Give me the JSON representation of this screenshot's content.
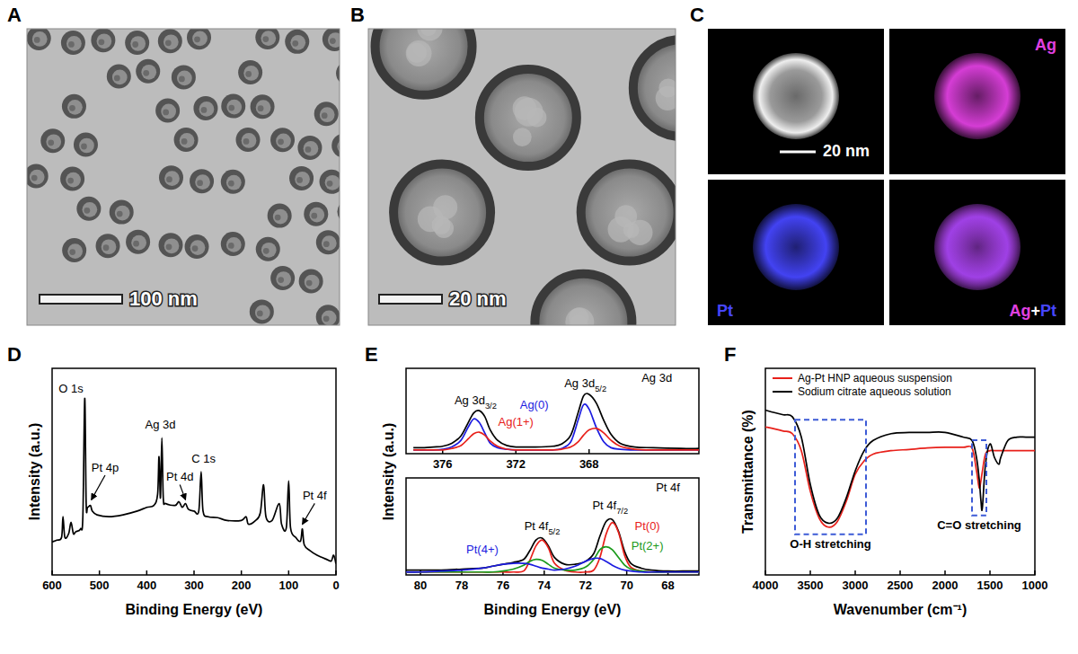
{
  "chart_data": [
    {
      "type": "micrograph",
      "title": "A",
      "annotations": [
        "100 nm"
      ]
    },
    {
      "type": "micrograph",
      "title": "B",
      "annotations": [
        "20 nm"
      ]
    },
    {
      "type": "eds_map",
      "title": "C",
      "annotations": [
        "20 nm",
        "Ag+Pt"
      ],
      "series": [
        {
          "name": "Ag",
          "color": "#e040e0"
        },
        {
          "name": "Pt",
          "color": "#4646ff"
        }
      ]
    },
    {
      "type": "line",
      "title": "D",
      "x_label": "Binding Energy (eV)",
      "y_label": "Intensity (a.u.)",
      "xlim": [
        600,
        0
      ],
      "ylim": [
        0,
        110
      ],
      "xticks": [
        600,
        500,
        400,
        300,
        200,
        100,
        0
      ],
      "tick_labels": "x",
      "x": [
        600,
        590,
        580,
        577,
        573,
        565,
        560,
        555,
        550,
        540,
        535,
        531,
        528,
        525,
        519,
        515,
        505,
        480,
        450,
        420,
        400,
        385,
        377,
        374,
        371,
        368,
        365,
        360,
        340,
        332,
        325,
        318,
        312,
        300,
        290,
        285,
        281,
        270,
        250,
        230,
        200,
        190,
        185,
        170,
        160,
        153,
        148,
        135,
        120,
        115,
        105,
        100,
        96,
        85,
        75,
        71,
        67,
        55,
        40,
        20,
        10,
        5,
        0
      ],
      "series": [
        {
          "color": "#000000",
          "values": [
            17.6,
            18.5,
            20,
            31,
            20,
            22,
            28,
            22,
            23,
            24.5,
            31,
            94,
            38,
            36,
            37,
            34,
            32,
            31,
            32,
            34,
            36,
            37,
            43,
            63,
            41,
            73,
            41,
            38,
            37,
            39,
            36,
            38,
            35,
            34,
            34,
            55,
            34,
            31,
            30.5,
            29,
            29,
            31,
            27,
            29,
            33,
            48,
            31,
            29,
            38,
            27,
            25,
            50,
            25,
            20,
            18,
            24.5,
            16,
            13,
            10.5,
            8.3,
            7.4,
            10.5,
            6
          ]
        }
      ],
      "annotations": [
        {
          "text": "O 1s",
          "x": 560,
          "y": 97
        },
        {
          "text": "Pt 4p",
          "x": 488,
          "y": 55,
          "target": [
            517,
            40
          ]
        },
        {
          "text": "Ag 3d",
          "x": 371,
          "y": 78
        },
        {
          "text": "Pt 4d",
          "x": 330,
          "y": 50,
          "target": [
            318,
            40
          ]
        },
        {
          "text": "C 1s",
          "x": 280,
          "y": 60
        },
        {
          "text": "Pt 4f",
          "x": 45,
          "y": 40,
          "target": [
            71,
            27
          ]
        }
      ]
    },
    {
      "type": "line",
      "title": "E",
      "y_label": "Intensity (a.u.)",
      "xlim": [
        378,
        362
      ],
      "ylim": [
        0,
        115
      ],
      "xticks": [
        376,
        372,
        368
      ],
      "tick_labels": "x",
      "x": [
        377.6,
        377,
        376.5,
        376,
        375.5,
        375,
        374.6,
        374.3,
        374.0,
        373.7,
        373.4,
        373,
        372.5,
        372,
        371,
        370,
        369.5,
        369,
        368.6,
        368.3,
        368.0,
        367.6,
        367.2,
        366.8,
        366.3,
        365.5,
        364.5,
        363,
        362
      ],
      "series": [
        {
          "color": "#000000",
          "values": [
            8,
            8,
            9,
            10,
            14,
            24,
            42,
            55,
            58,
            50,
            32,
            18,
            11,
            9,
            9,
            10,
            13,
            25,
            55,
            78,
            80,
            68,
            45,
            26,
            14,
            9,
            8,
            7,
            7
          ]
        },
        {
          "name": "Ag(0)",
          "color": "#1c1ce0",
          "values": [
            5,
            5,
            5,
            6,
            9,
            18,
            36,
            47,
            42,
            28,
            14,
            8,
            6,
            5,
            5,
            5,
            7,
            16,
            45,
            66,
            60,
            35,
            16,
            8,
            6,
            5,
            5,
            5,
            5
          ],
          "label_at": [
            371.0,
            60
          ]
        },
        {
          "name": "Ag(1+)",
          "color": "#e8201a",
          "values": [
            5,
            5,
            5,
            5,
            7,
            11,
            20,
            27,
            29,
            25,
            17,
            10,
            6,
            5,
            5,
            5,
            6,
            9,
            16,
            25,
            32,
            34,
            28,
            18,
            10,
            6,
            5,
            5,
            5
          ],
          "label_at": [
            372.0,
            37
          ]
        }
      ],
      "annotations": [
        {
          "text": "Ag 3d",
          "x": 364.3,
          "y": 97
        },
        {
          "text": "Ag 3d3/2",
          "x": 374.2,
          "y": 67
        },
        {
          "text": "Ag 3d5/2",
          "x": 368.2,
          "y": 90
        }
      ]
    },
    {
      "type": "line",
      "x_label": "Binding Energy (eV)",
      "xlim": [
        80.7,
        66.5
      ],
      "ylim": [
        0,
        100
      ],
      "xticks": [
        80,
        78,
        76,
        74,
        72,
        70,
        68
      ],
      "tick_labels": "x",
      "x": [
        80.7,
        80,
        79,
        78,
        77,
        76.5,
        76,
        75.5,
        75,
        74.7,
        74.4,
        74.1,
        73.8,
        73.5,
        73,
        72.5,
        72,
        71.6,
        71.3,
        71.0,
        70.7,
        70.4,
        70.1,
        69.8,
        69.3,
        68.8,
        68,
        67,
        66.5
      ],
      "series": [
        {
          "color": "#000000",
          "values": [
            5,
            5,
            5,
            6,
            7,
            9,
            11,
            13,
            16,
            25,
            36,
            38,
            30,
            18,
            11,
            11,
            14,
            22,
            40,
            55,
            57,
            45,
            24,
            12,
            7,
            5,
            4,
            4,
            4
          ]
        },
        {
          "name": "Pt(0)",
          "color": "#e8201a",
          "values": [
            3,
            3,
            3,
            3,
            3,
            3,
            3,
            3,
            4,
            15,
            30,
            36,
            28,
            12,
            5,
            3,
            3,
            5,
            18,
            42,
            54,
            44,
            20,
            8,
            4,
            3,
            3,
            3,
            3
          ],
          "label_at": [
            69.0,
            46
          ]
        },
        {
          "name": "Pt(2+)",
          "color": "#1a9a1a",
          "values": [
            3,
            3,
            3,
            3,
            3,
            3,
            4,
            6,
            10,
            14,
            16,
            15,
            11,
            7,
            5,
            5,
            8,
            16,
            26,
            29,
            26,
            18,
            10,
            6,
            4,
            3,
            3,
            3,
            3
          ],
          "label_at": [
            69.0,
            26
          ]
        },
        {
          "name": "Pt(4+)",
          "color": "#1c1ce0",
          "values": [
            3,
            3,
            4,
            5,
            7,
            9,
            11,
            12,
            12,
            11,
            9,
            7,
            6,
            5,
            6,
            9,
            14,
            17,
            17,
            14,
            10,
            7,
            5,
            4,
            3,
            3,
            3,
            3,
            3
          ],
          "label_at": [
            77.0,
            22
          ]
        }
      ],
      "annotations": [
        {
          "text": "Pt 4f",
          "x": 68.0,
          "y": 86
        },
        {
          "text": "Pt 4f5/2",
          "x": 74.1,
          "y": 46
        },
        {
          "text": "Pt 4f7/2",
          "x": 70.8,
          "y": 68
        }
      ]
    },
    {
      "type": "line",
      "title": "F",
      "x_label": "Wavenumber (cm⁻¹)",
      "y_label": "Transmittance (%)",
      "xlim": [
        4000,
        1000
      ],
      "ylim": [
        -20,
        120
      ],
      "xticks": [
        4000,
        3500,
        3000,
        2500,
        2000,
        1500,
        1000
      ],
      "tick_labels": "x",
      "legend": "upper left",
      "x": [
        4000,
        3900,
        3800,
        3700,
        3600,
        3500,
        3400,
        3300,
        3200,
        3100,
        3000,
        2900,
        2800,
        2600,
        2400,
        2200,
        2000,
        1800,
        1700,
        1650,
        1620,
        1600,
        1585,
        1550,
        1500,
        1450,
        1400,
        1380,
        1300,
        1200,
        1100,
        1000
      ],
      "series": [
        {
          "name": "Ag-Pt HNP aqueous suspension",
          "color": "#e8201a",
          "values": [
            80.3,
            79,
            77.5,
            75.7,
            64.2,
            36.7,
            18.3,
            12.4,
            16.1,
            29.8,
            48.2,
            57.3,
            61.9,
            64.2,
            65,
            66,
            66.5,
            66.5,
            66,
            50.5,
            39,
            44,
            50,
            61.9,
            64.2,
            64.2,
            64.2,
            64.2,
            64.2,
            64.2,
            64.2,
            64.2
          ]
        },
        {
          "name": "Sodium citrate aqueous solution",
          "color": "#000000",
          "values": [
            91.7,
            90,
            88.5,
            87.2,
            73.4,
            41.3,
            20.6,
            15.1,
            18.3,
            32.1,
            50.5,
            64.2,
            71.1,
            75.7,
            76.5,
            76.6,
            76.6,
            73.4,
            71.1,
            59.6,
            45,
            30,
            25.2,
            55,
            68.8,
            59.6,
            55,
            59.6,
            71.1,
            73.4,
            73.4,
            73.4
          ]
        }
      ],
      "annotations": [
        {
          "text": "O-H stretching",
          "x": [
            3650,
            2900
          ]
        },
        {
          "text": "C=O stretching",
          "x": [
            1680,
            1560
          ]
        }
      ]
    }
  ]
}
